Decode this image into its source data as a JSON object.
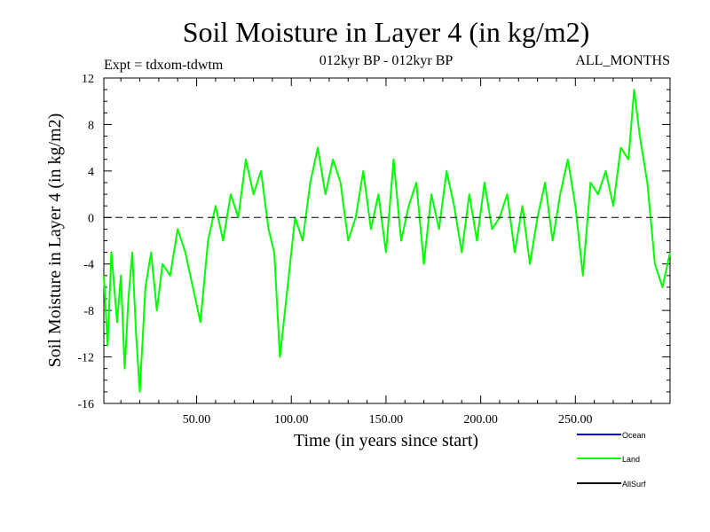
{
  "chart_data": {
    "type": "line",
    "title": "Soil Moisture in Layer 4 (in kg/m2)",
    "subtitle_left": "Expt = tdxom-tdwtm",
    "subtitle_center": "012kyr BP - 012kyr BP",
    "subtitle_right": "ALL_MONTHS",
    "xlabel": "Time (in years since start)",
    "ylabel": "Soil Moisture in Layer 4 (in kg/m2)",
    "xlim": [
      1,
      300
    ],
    "ylim": [
      -16,
      12
    ],
    "x_ticks": [
      50,
      100,
      150,
      200,
      250
    ],
    "x_tick_labels": [
      "50.00",
      "100.00",
      "150.00",
      "200.00",
      "250.00"
    ],
    "y_ticks": [
      -16,
      -12,
      -8,
      -4,
      0,
      4,
      8,
      12
    ],
    "y_tick_labels": [
      "-16",
      "-12",
      "-8",
      "-4",
      "0",
      "4",
      "8",
      "12"
    ],
    "reference_line": 0,
    "legend_position": "bottom-right",
    "series": [
      {
        "name": "Ocean",
        "color": "#0000ff",
        "x": [],
        "y": []
      },
      {
        "name": "Land",
        "color": "#00ff00",
        "x": [
          1,
          3,
          5,
          8,
          10,
          12,
          14,
          16,
          18,
          20,
          23,
          26,
          29,
          32,
          36,
          40,
          44,
          48,
          52,
          56,
          60,
          64,
          68,
          72,
          76,
          80,
          84,
          88,
          91,
          94,
          98,
          102,
          106,
          110,
          114,
          118,
          122,
          126,
          130,
          134,
          138,
          142,
          146,
          150,
          154,
          158,
          162,
          166,
          170,
          174,
          178,
          182,
          186,
          190,
          194,
          198,
          202,
          206,
          210,
          214,
          218,
          222,
          226,
          230,
          234,
          238,
          242,
          246,
          250,
          254,
          258,
          262,
          266,
          270,
          274,
          278,
          281,
          284,
          288,
          292,
          296,
          300
        ],
        "y": [
          -5,
          -11,
          -3,
          -9,
          -5,
          -13,
          -7,
          -3,
          -10,
          -15,
          -6,
          -3,
          -8,
          -4,
          -5,
          -1,
          -3,
          -6,
          -9,
          -2,
          1,
          -2,
          2,
          0,
          5,
          2,
          4,
          -1,
          -3,
          -12,
          -6,
          0,
          -2,
          3,
          6,
          2,
          5,
          3,
          -2,
          0,
          4,
          -1,
          2,
          -3,
          5,
          -2,
          1,
          3,
          -4,
          2,
          -1,
          4,
          1,
          -3,
          2,
          -2,
          3,
          -1,
          0,
          2,
          -3,
          1,
          -4,
          0,
          3,
          -2,
          2,
          5,
          1,
          -5,
          3,
          2,
          4,
          1,
          6,
          5,
          11,
          7,
          3,
          -4,
          -6,
          -3
        ]
      },
      {
        "name": "AllSurf",
        "color": "#000000",
        "x": [],
        "y": []
      }
    ]
  }
}
